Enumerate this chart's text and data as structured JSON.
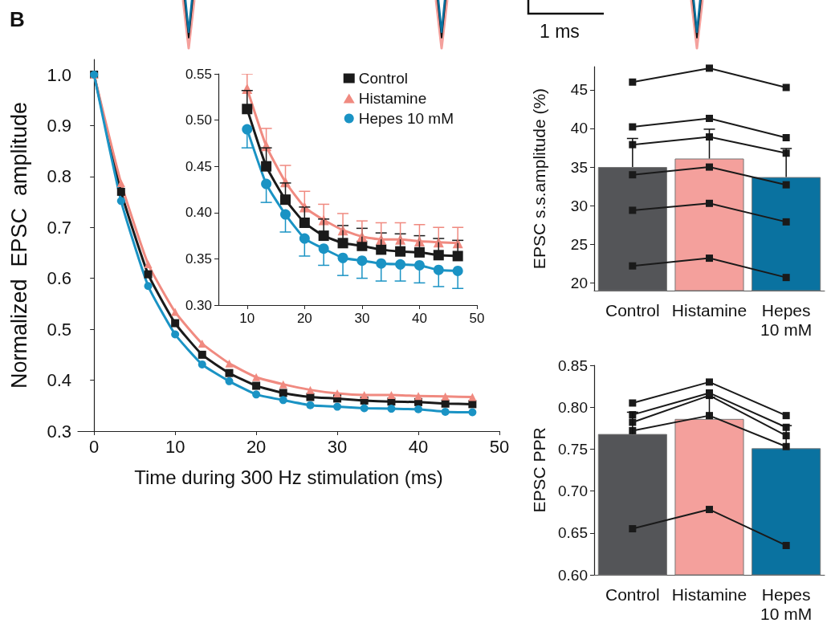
{
  "chart_data": [
    {
      "type": "line",
      "xlabel": "Time during 300 Hz stimulation (ms)",
      "ylabel": "Normalized  EPSC  amplitude",
      "annotations": [
        "B",
        "1 ms"
      ],
      "xlim": [
        -2,
        50
      ],
      "xticks": [
        0,
        10,
        20,
        30,
        40,
        50
      ],
      "ylim": [
        0.3,
        1.03
      ],
      "yticks": [
        0.3,
        0.4,
        0.5,
        0.6,
        0.7,
        0.8,
        0.9,
        {
          "value": 1,
          "label": "1.0"
        }
      ],
      "legend": false,
      "x": [
        0,
        3.33,
        6.67,
        10,
        13.33,
        16.67,
        20,
        23.33,
        26.67,
        30,
        33.33,
        36.67,
        40,
        43.33,
        46.67
      ],
      "series": [
        {
          "color": "#1a1a1a",
          "marker": "square",
          "values": [
            1.0,
            0.77,
            0.608,
            0.512,
            0.45,
            0.414,
            0.389,
            0.375,
            0.367,
            0.364,
            0.36,
            0.358,
            0.357,
            0.354,
            0.353
          ]
        },
        {
          "color": "#f08a80",
          "marker": "triangle",
          "values": [
            1.0,
            0.787,
            0.628,
            0.534,
            0.472,
            0.433,
            0.406,
            0.392,
            0.381,
            0.374,
            0.371,
            0.371,
            0.369,
            0.368,
            0.367
          ]
        },
        {
          "color": "#1a93c4",
          "marker": "circle",
          "values": [
            1.0,
            0.752,
            0.585,
            0.49,
            0.431,
            0.398,
            0.372,
            0.361,
            0.351,
            0.348,
            0.345,
            0.344,
            0.343,
            0.338,
            0.337
          ]
        }
      ]
    },
    {
      "type": "line",
      "xlim": [
        5,
        50
      ],
      "xticks": [
        10,
        20,
        30,
        40,
        50
      ],
      "ylim": [
        0.3,
        0.55
      ],
      "yticks": [
        {
          "value": 0.3,
          "label": "0.30"
        },
        0.35,
        {
          "value": 0.4,
          "label": "0.40"
        },
        0.45,
        {
          "value": 0.5,
          "label": "0.50"
        },
        0.55
      ],
      "grid": false,
      "legend": "top right",
      "x": [
        10,
        13.33,
        16.67,
        20,
        23.33,
        26.67,
        30,
        33.33,
        36.67,
        40,
        43.33,
        46.67
      ],
      "series": [
        {
          "name": "Control",
          "color": "#1a1a1a",
          "marker": "square",
          "values": [
            0.512,
            0.45,
            0.414,
            0.389,
            0.375,
            0.367,
            0.364,
            0.36,
            0.358,
            0.357,
            0.354,
            0.353
          ],
          "errors": [
            [
              0.512,
              0.532
            ],
            [
              0.45,
              0.47
            ],
            [
              0.414,
              0.432
            ],
            [
              0.389,
              0.406
            ],
            [
              0.375,
              0.393
            ],
            [
              0.367,
              0.386
            ],
            [
              0.364,
              0.383
            ],
            [
              0.36,
              0.378
            ],
            [
              0.358,
              0.377
            ],
            [
              0.357,
              0.375
            ],
            [
              0.354,
              0.372
            ],
            [
              0.353,
              0.37
            ]
          ]
        },
        {
          "name": "Histamine",
          "color": "#f08a80",
          "marker": "triangle",
          "values": [
            0.534,
            0.472,
            0.433,
            0.406,
            0.392,
            0.381,
            0.374,
            0.371,
            0.371,
            0.369,
            0.368,
            0.367
          ],
          "errors": [
            [
              0.534,
              0.55
            ],
            [
              0.472,
              0.491
            ],
            [
              0.433,
              0.451
            ],
            [
              0.406,
              0.423
            ],
            [
              0.392,
              0.409
            ],
            [
              0.381,
              0.399
            ],
            [
              0.374,
              0.391
            ],
            [
              0.371,
              0.389
            ],
            [
              0.371,
              0.389
            ],
            [
              0.369,
              0.387
            ],
            [
              0.368,
              0.384
            ],
            [
              0.367,
              0.384
            ]
          ]
        },
        {
          "name": "Hepes 10 mM",
          "color": "#1a93c4",
          "marker": "circle",
          "values": [
            0.49,
            0.431,
            0.398,
            0.372,
            0.361,
            0.351,
            0.348,
            0.345,
            0.344,
            0.343,
            0.338,
            0.337
          ],
          "errors": [
            [
              0.47,
              0.49
            ],
            [
              0.411,
              0.431
            ],
            [
              0.379,
              0.398
            ],
            [
              0.353,
              0.372
            ],
            [
              0.343,
              0.361
            ],
            [
              0.332,
              0.351
            ],
            [
              0.329,
              0.348
            ],
            [
              0.326,
              0.345
            ],
            [
              0.326,
              0.344
            ],
            [
              0.324,
              0.343
            ],
            [
              0.32,
              0.338
            ],
            [
              0.318,
              0.337
            ]
          ]
        }
      ]
    },
    {
      "type": "bar",
      "ylabel": "EPSC s.s.amplitude (%)",
      "categories": [
        "Control",
        "Histamine",
        "Hepes 10 mM"
      ],
      "ylim": [
        19,
        48
      ],
      "yticks": [
        20,
        25,
        30,
        35,
        40,
        45
      ],
      "grid": false,
      "legend": false,
      "series": [
        {
          "type": "bar",
          "colors": [
            "#545558",
            "#f4a09c",
            "#0a72a0"
          ],
          "values": [
            35.0,
            36.1,
            33.7
          ],
          "errors": [
            [
              35.0,
              38.7
            ],
            [
              36.1,
              39.9
            ],
            [
              33.7,
              37.4
            ]
          ]
        },
        {
          "type": "line",
          "color": "#1a1a1a",
          "marker": "square",
          "values": [
            46.0,
            47.8,
            45.3
          ]
        },
        {
          "type": "line",
          "color": "#1a1a1a",
          "marker": "square",
          "values": [
            40.2,
            41.3,
            38.8
          ]
        },
        {
          "type": "line",
          "color": "#1a1a1a",
          "marker": "square",
          "values": [
            37.9,
            38.9,
            36.8
          ]
        },
        {
          "type": "line",
          "color": "#1a1a1a",
          "marker": "square",
          "values": [
            34.0,
            35.0,
            32.7
          ]
        },
        {
          "type": "line",
          "color": "#1a1a1a",
          "marker": "square",
          "values": [
            29.4,
            30.3,
            27.9
          ]
        },
        {
          "type": "line",
          "color": "#1a1a1a",
          "marker": "square",
          "values": [
            22.2,
            23.2,
            20.7
          ]
        }
      ]
    },
    {
      "type": "bar",
      "ylabel": "EPSC PPR",
      "categories": [
        "Control",
        "Histamine",
        "Hepes 10 mM"
      ],
      "ylim": [
        0.6,
        0.85
      ],
      "yticks": [
        {
          "value": 0.6,
          "label": "0.60"
        },
        0.65,
        {
          "value": 0.7,
          "label": "0.70"
        },
        0.75,
        {
          "value": 0.8,
          "label": "0.80"
        },
        0.85
      ],
      "grid": false,
      "legend": false,
      "series": [
        {
          "type": "bar",
          "colors": [
            "#545558",
            "#f4a09c",
            "#0a72a0"
          ],
          "values": [
            0.768,
            0.786,
            0.751
          ],
          "errors": [
            [
              0.768,
              0.794
            ],
            [
              0.786,
              0.812
            ],
            [
              0.751,
              0.778
            ]
          ]
        },
        {
          "type": "line",
          "color": "#1a1a1a",
          "marker": "square",
          "values": [
            0.805,
            0.83,
            0.79
          ]
        },
        {
          "type": "line",
          "color": "#1a1a1a",
          "marker": "square",
          "values": [
            0.791,
            0.817,
            0.776
          ]
        },
        {
          "type": "line",
          "color": "#1a1a1a",
          "marker": "square",
          "values": [
            0.782,
            0.814,
            0.766
          ]
        },
        {
          "type": "line",
          "color": "#1a1a1a",
          "marker": "square",
          "values": [
            0.772,
            0.79,
            0.753
          ]
        },
        {
          "type": "line",
          "color": "#1a1a1a",
          "marker": "square",
          "values": [
            0.655,
            0.678,
            0.635
          ]
        }
      ]
    }
  ]
}
